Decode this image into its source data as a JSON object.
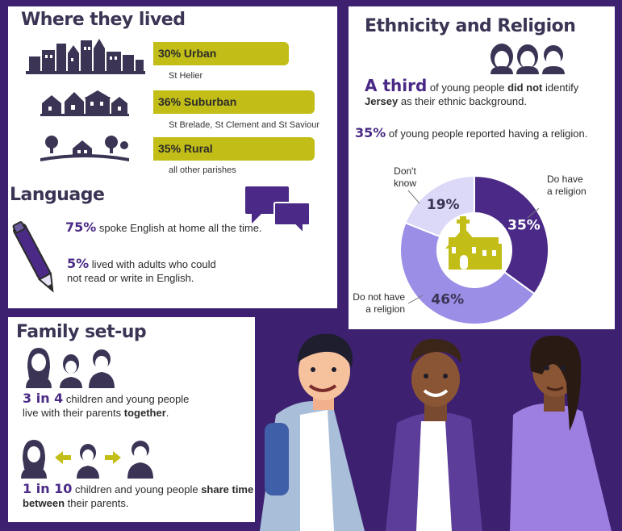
{
  "where": {
    "title": "Where they lived",
    "urban_label": "30% Urban",
    "urban_sub": "St Helier",
    "suburban_label": "36% Suburban",
    "suburban_sub": "St Brelade, St Clement and St Saviour",
    "rural_label": "35% Rural",
    "rural_sub": "all other parishes"
  },
  "language": {
    "title": "Language",
    "stat1_pct": "75%",
    "stat1_text": "spoke English at home all the time.",
    "stat2_pct": "5%",
    "stat2_text_a": "lived with adults who could",
    "stat2_text_b": "not read or write in English."
  },
  "family": {
    "title": "Family set-up",
    "stat1_pct": "3 in 4",
    "stat1_text_a": "children and young people",
    "stat1_text_b": "live with their parents",
    "stat1_bold": "together",
    "stat1_end": ".",
    "stat2_pct": "1 in 10",
    "stat2_text_a": "children and young people",
    "stat2_bold_a": "share time",
    "stat2_bold_b": "between",
    "stat2_end": "their parents."
  },
  "ethnicity": {
    "title": "Ethnicity and Religion",
    "third_big": "A third",
    "third_text_a": "of young people",
    "third_bold": "did not",
    "third_text_b": "identify",
    "third_jersey": "Jersey",
    "third_text_c": "as their ethnic background.",
    "religion_pct": "35%",
    "religion_text": "of young people reported having a religion."
  },
  "chart_data": {
    "type": "pie",
    "categories": [
      "Do have a religion",
      "Do not have a religion",
      "Don't know"
    ],
    "values": [
      35,
      46,
      19
    ],
    "labels": [
      "35%",
      "46%",
      "19%"
    ],
    "legend_a": [
      "Do have",
      "a religion"
    ],
    "legend_b": [
      "Do not have",
      "a religion"
    ],
    "legend_c": [
      "Don't",
      "know"
    ],
    "colors": [
      "#4a2a86",
      "#9a8ee6",
      "#dcd8f7"
    ]
  },
  "colors": {
    "accent": "#c2be17",
    "brand": "#4a2a86",
    "background": "#3d2170"
  }
}
